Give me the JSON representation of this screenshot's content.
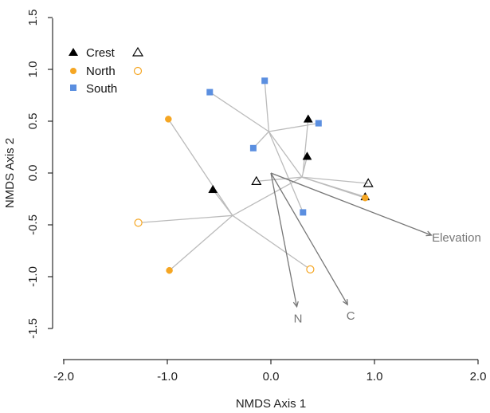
{
  "chart_data": {
    "type": "scatter",
    "xlabel": "NMDS Axis 1",
    "ylabel": "NMDS Axis 2",
    "xlim": [
      -2.0,
      2.0
    ],
    "ylim": [
      -1.5,
      1.5
    ],
    "x_ticks": [
      -2.0,
      -1.0,
      0.0,
      1.0,
      2.0
    ],
    "x_tick_labels": [
      "-2.0",
      "-1.0",
      "0.0",
      "1.0",
      "2.0"
    ],
    "y_ticks": [
      -1.5,
      -1.0,
      -0.5,
      0.0,
      0.5,
      1.0,
      1.5
    ],
    "y_tick_labels": [
      "-1.5",
      "-1.0",
      "-0.5",
      "0.0",
      "0.5",
      "1.0",
      "1.5"
    ],
    "grid": false,
    "legend": {
      "placement": "top-left",
      "entries": [
        {
          "label": "Crest",
          "marker": "triangle",
          "color": "#000000"
        },
        {
          "label": "North",
          "marker": "circle",
          "color": "#F5A623"
        },
        {
          "label": "South",
          "marker": "square",
          "color": "#5B8FE0"
        }
      ]
    },
    "colors": {
      "Crest": "#000000",
      "North": "#F5A623",
      "South": "#5B8FE0",
      "spider": "#BBBBBB",
      "vector": "#777777"
    },
    "centroids": [
      {
        "x": -0.37,
        "y": -0.41
      },
      {
        "x": -0.02,
        "y": 0.4
      },
      {
        "x": 0.31,
        "y": 0.0
      },
      {
        "x": 0.3,
        "y": -0.04
      }
    ],
    "series": [
      {
        "name": "Crest",
        "marker": "triangle",
        "fill": "filled",
        "points": [
          {
            "x": -0.56,
            "y": -0.16,
            "c": 0
          },
          {
            "x": 0.36,
            "y": 0.52,
            "c": 2
          },
          {
            "x": 0.35,
            "y": 0.16,
            "c": 2
          },
          {
            "x": 0.91,
            "y": -0.23,
            "c": 3
          }
        ]
      },
      {
        "name": "Crest",
        "marker": "triangle",
        "fill": "open",
        "points": [
          {
            "x": -0.14,
            "y": -0.08,
            "c": 3
          },
          {
            "x": 0.94,
            "y": -0.1,
            "c": 3
          }
        ]
      },
      {
        "name": "North",
        "marker": "circle",
        "fill": "filled",
        "points": [
          {
            "x": -0.99,
            "y": 0.52,
            "c": 0
          },
          {
            "x": -0.98,
            "y": -0.94,
            "c": 0
          },
          {
            "x": 0.91,
            "y": -0.24,
            "c": 3
          }
        ]
      },
      {
        "name": "North",
        "marker": "circle",
        "fill": "open",
        "points": [
          {
            "x": -1.28,
            "y": -0.48,
            "c": 0
          },
          {
            "x": 0.38,
            "y": -0.93,
            "c": 0
          }
        ]
      },
      {
        "name": "South",
        "marker": "square",
        "fill": "filled",
        "points": [
          {
            "x": -0.59,
            "y": 0.78,
            "c": 1
          },
          {
            "x": -0.06,
            "y": 0.89,
            "c": 1
          },
          {
            "x": -0.17,
            "y": 0.24,
            "c": 1
          },
          {
            "x": 0.46,
            "y": 0.48,
            "c": 1
          },
          {
            "x": 0.31,
            "y": -0.38,
            "c": 1
          }
        ]
      }
    ],
    "vectors": [
      {
        "label": "Elevation",
        "x": 1.55,
        "y": -0.6
      },
      {
        "label": "N",
        "x": 0.25,
        "y": -1.29
      },
      {
        "label": "C",
        "x": 0.74,
        "y": -1.27
      }
    ]
  }
}
